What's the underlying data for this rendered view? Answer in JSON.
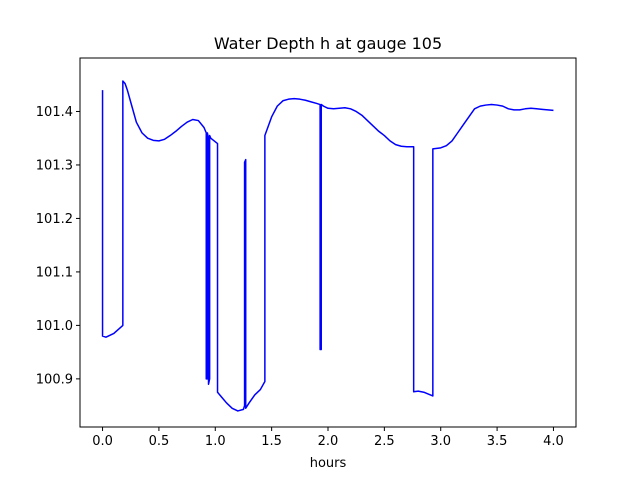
{
  "chart_data": {
    "type": "line",
    "title": "Water Depth h at gauge 105",
    "xlabel": "hours",
    "ylabel": "",
    "xlim": [
      -0.2,
      4.2
    ],
    "ylim": [
      100.81,
      101.5
    ],
    "xticks": [
      0.0,
      0.5,
      1.0,
      1.5,
      2.0,
      2.5,
      3.0,
      3.5,
      4.0
    ],
    "xtick_labels": [
      "0.0",
      "0.5",
      "1.0",
      "1.5",
      "2.0",
      "2.5",
      "3.0",
      "3.5",
      "4.0"
    ],
    "yticks": [
      100.9,
      101.0,
      101.1,
      101.2,
      101.3,
      101.4
    ],
    "ytick_labels": [
      "100.9",
      "101.0",
      "101.1",
      "101.2",
      "101.3",
      "101.4"
    ],
    "grid": false,
    "series": [
      {
        "color": "#0000ff",
        "x": [
          0.0,
          0.0,
          0.03,
          0.1,
          0.18,
          0.18,
          0.2,
          0.22,
          0.26,
          0.3,
          0.35,
          0.4,
          0.45,
          0.5,
          0.55,
          0.6,
          0.65,
          0.7,
          0.75,
          0.8,
          0.85,
          0.9,
          0.92,
          0.92,
          0.93,
          0.93,
          0.94,
          0.94,
          0.95,
          0.95,
          0.96,
          0.96,
          1.02,
          1.02,
          1.06,
          1.1,
          1.15,
          1.2,
          1.25,
          1.26,
          1.26,
          1.27,
          1.27,
          1.3,
          1.35,
          1.4,
          1.44,
          1.44,
          1.5,
          1.55,
          1.6,
          1.65,
          1.7,
          1.75,
          1.8,
          1.85,
          1.9,
          1.93,
          1.93,
          1.94,
          1.94,
          1.96,
          2.0,
          2.05,
          2.1,
          2.15,
          2.2,
          2.25,
          2.3,
          2.35,
          2.4,
          2.45,
          2.5,
          2.55,
          2.6,
          2.65,
          2.7,
          2.75,
          2.76,
          2.76,
          2.8,
          2.85,
          2.93,
          2.93,
          3.0,
          3.05,
          3.1,
          3.15,
          3.2,
          3.25,
          3.3,
          3.35,
          3.4,
          3.45,
          3.5,
          3.55,
          3.6,
          3.65,
          3.7,
          3.75,
          3.8,
          3.85,
          3.9,
          3.95,
          4.0
        ],
        "y": [
          101.44,
          100.98,
          100.978,
          100.985,
          101.0,
          101.457,
          101.452,
          101.44,
          101.41,
          101.38,
          101.36,
          101.35,
          101.346,
          101.345,
          101.348,
          101.355,
          101.363,
          101.372,
          101.38,
          101.385,
          101.383,
          101.37,
          101.36,
          100.9,
          100.9,
          101.36,
          101.35,
          100.89,
          100.9,
          101.355,
          101.35,
          101.35,
          101.34,
          100.875,
          100.865,
          100.855,
          100.845,
          100.84,
          100.843,
          100.85,
          101.305,
          101.31,
          100.845,
          100.855,
          100.87,
          100.88,
          100.895,
          101.355,
          101.39,
          101.41,
          101.42,
          101.423,
          101.424,
          101.423,
          101.421,
          101.418,
          101.415,
          101.413,
          100.955,
          100.955,
          101.413,
          101.41,
          101.406,
          101.405,
          101.406,
          101.407,
          101.405,
          101.4,
          101.393,
          101.383,
          101.373,
          101.363,
          101.355,
          101.345,
          101.338,
          101.335,
          101.334,
          101.334,
          101.334,
          100.876,
          100.877,
          100.875,
          100.868,
          101.33,
          101.332,
          101.336,
          101.345,
          101.36,
          101.375,
          101.39,
          101.405,
          101.41,
          101.412,
          101.413,
          101.412,
          101.41,
          101.405,
          101.403,
          101.403,
          101.405,
          101.406,
          101.405,
          101.404,
          101.403,
          101.402
        ]
      }
    ]
  }
}
